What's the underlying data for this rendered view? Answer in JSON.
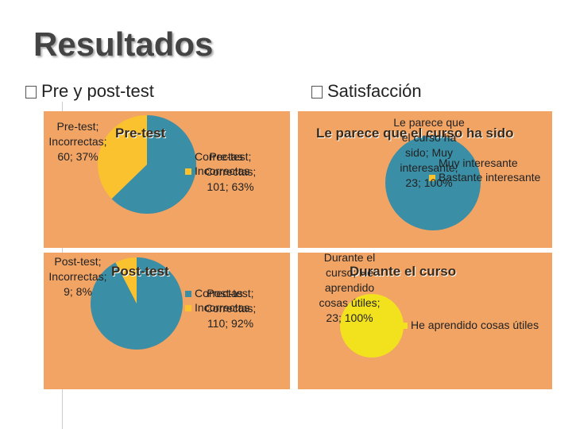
{
  "title": "Resultados",
  "sections": [
    "Pre y post-test",
    "Satisfacción"
  ],
  "chart_data": [
    {
      "type": "pie",
      "title": "Pre-test",
      "categories": [
        "Correctas",
        "Incorrectas"
      ],
      "values": [
        101,
        60
      ],
      "value_labels": [
        "Pre-test; Correctas; 101; 63%",
        "Pre-test; Incorrectas; 60; 37%"
      ],
      "colors": [
        "#3a8ea6",
        "#f9c22e"
      ],
      "legend": "right"
    },
    {
      "type": "pie",
      "title": "Post-test",
      "categories": [
        "Correctas",
        "Incorrectas"
      ],
      "values": [
        110,
        9
      ],
      "value_labels": [
        "Post-test; Correctas; 110; 92%",
        "Post-test; Incorrectas; 9; 8%"
      ],
      "colors": [
        "#3a8ea6",
        "#f9c22e"
      ],
      "legend": "right"
    },
    {
      "type": "pie",
      "title": "Le parece que el curso ha sido",
      "categories": [
        "Muy interesante",
        "Bastante interesante"
      ],
      "values": [
        23,
        null
      ],
      "value_labels": [
        "Le parece que el curso ha sido; Muy interesante; 23; 100%",
        null
      ],
      "colors": [
        "#3a8ea6",
        "#f9c22e"
      ],
      "legend": "right"
    },
    {
      "type": "pie",
      "title": "Durante el curso",
      "categories": [
        "He aprendido cosas útiles"
      ],
      "values": [
        23
      ],
      "value_labels": [
        "Durante el curso; He aprendido cosas útiles; 23; 100%"
      ],
      "colors": [
        "#f2e21e"
      ],
      "legend": "right"
    }
  ]
}
